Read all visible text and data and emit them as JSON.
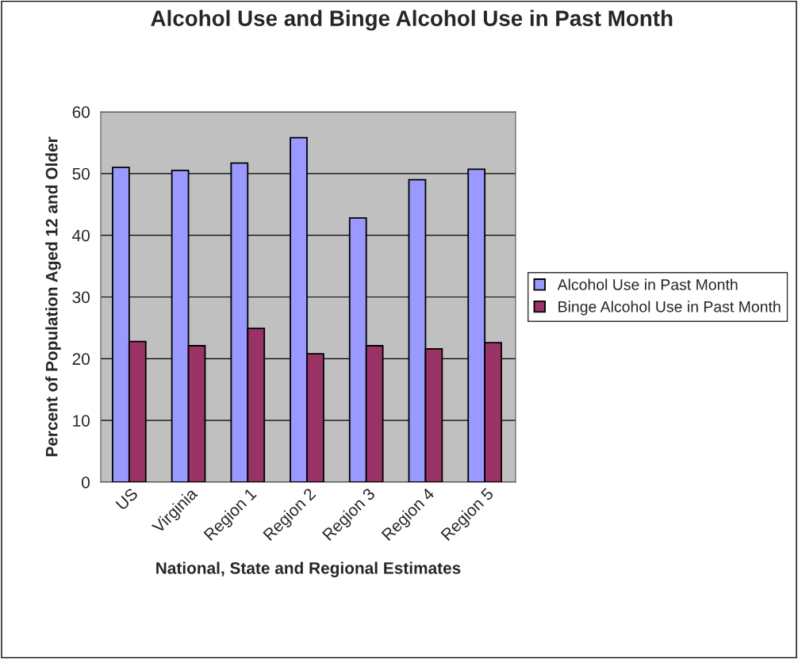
{
  "chart_data": {
    "type": "bar",
    "title": "Alcohol Use and Binge Alcohol Use in Past Month",
    "xlabel": "National, State and Regional Estimates",
    "ylabel": "Percent of Population Aged 12 and Older",
    "categories": [
      "US",
      "Virginia",
      "Region 1",
      "Region 2",
      "Region 3",
      "Region 4",
      "Region 5"
    ],
    "series": [
      {
        "name": "Alcohol Use in Past Month",
        "color": "#9999ff",
        "values": [
          51.0,
          50.5,
          51.7,
          55.8,
          42.8,
          49.0,
          50.7
        ]
      },
      {
        "name": "Binge Alcohol Use in Past Month",
        "color": "#993366",
        "values": [
          22.8,
          22.1,
          24.9,
          20.8,
          22.1,
          21.6,
          22.6
        ]
      }
    ],
    "ylim": [
      0,
      60
    ],
    "yticks": [
      0,
      10,
      20,
      30,
      40,
      50,
      60
    ],
    "grid": "y",
    "legend": "right"
  }
}
